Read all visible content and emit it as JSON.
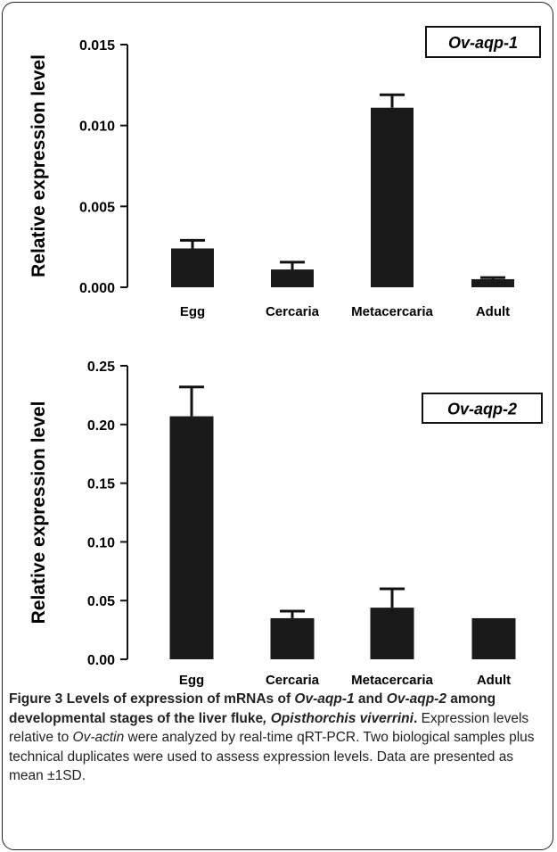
{
  "chart_data": [
    {
      "type": "bar",
      "title": "Ov-aqp-1",
      "categories": [
        "Egg",
        "Cercaria",
        "Metacercaria",
        "Adult"
      ],
      "values": [
        0.0024,
        0.0011,
        0.0111,
        0.0005
      ],
      "error": [
        0.0005,
        0.00045,
        0.0008,
        0.0001
      ],
      "ylabel": "Relative expression level",
      "xlabel": "",
      "ylim": [
        0,
        0.015
      ],
      "yticks": [
        "0.000",
        "0.005",
        "0.010",
        "0.015"
      ],
      "bar_color": "#1a1a1a",
      "legend": "none",
      "grid": false
    },
    {
      "type": "bar",
      "title": "Ov-aqp-2",
      "categories": [
        "Egg",
        "Cercaria",
        "Metacercaria",
        "Adult"
      ],
      "values": [
        0.207,
        0.035,
        0.044,
        0.035
      ],
      "error": [
        0.025,
        0.006,
        0.016,
        0.0
      ],
      "ylabel": "Relative expression level",
      "xlabel": "",
      "ylim": [
        0,
        0.25
      ],
      "yticks": [
        "0.00",
        "0.05",
        "0.10",
        "0.15",
        "0.20",
        "0.25"
      ],
      "bar_color": "#1a1a1a",
      "legend": "none",
      "grid": false
    }
  ],
  "caption": {
    "title_parts": [
      "Figure 3 Levels of expression of mRNAs of ",
      "Ov-aqp-1",
      " and ",
      "Ov-aqp-2",
      " among developmental stages of the liver fluke",
      ", Opisthorchis viverrini",
      "."
    ],
    "body_parts": [
      " Expression levels relative to ",
      "Ov-actin",
      " were analyzed by real-time qRT-PCR. Two biological samples plus technical duplicates were used to assess expression levels. Data are presented as mean ±1SD."
    ]
  }
}
